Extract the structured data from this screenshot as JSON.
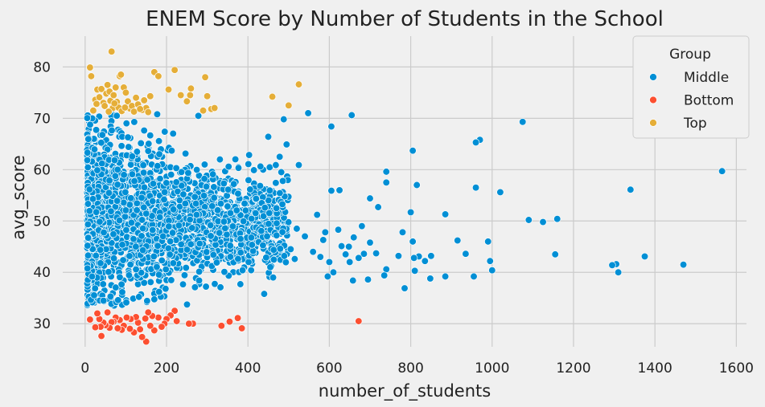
{
  "chart_data": {
    "type": "scatter",
    "title": "ENEM Score by Number of Students in the School",
    "xlabel": "number_of_students",
    "ylabel": "avg_score",
    "xlim": [
      -55,
      1625
    ],
    "ylim": [
      25.5,
      86
    ],
    "xticks": [
      0,
      200,
      400,
      600,
      800,
      1000,
      1200,
      1400,
      1600
    ],
    "xtick_labels": [
      "0",
      "200",
      "400",
      "600",
      "800",
      "1000",
      "1200",
      "1400",
      "1600"
    ],
    "yticks": [
      30,
      40,
      50,
      60,
      70,
      80
    ],
    "ytick_labels": [
      "30",
      "40",
      "50",
      "60",
      "70",
      "80"
    ],
    "grid": true,
    "legend": {
      "title": "Group",
      "placement": "top-right",
      "entries": [
        "Middle",
        "Bottom",
        "Top"
      ]
    },
    "colors": {
      "Middle": "#008fd5",
      "Bottom": "#fc4f30",
      "Top": "#e5ae38",
      "background": "#f0f0f0",
      "grid": "#cbcbcb"
    },
    "series": [
      {
        "name": "Middle",
        "dense_region": {
          "x": [
            5,
            500
          ],
          "y": [
            33.5,
            71
          ],
          "approx_count": 2400
        },
        "points": [
          [
            1565,
            59.7
          ],
          [
            1470,
            41.5
          ],
          [
            1375,
            43.1
          ],
          [
            1340,
            56.1
          ],
          [
            1310,
            40.0
          ],
          [
            1305,
            41.6
          ],
          [
            1295,
            41.4
          ],
          [
            1160,
            50.4
          ],
          [
            1155,
            43.5
          ],
          [
            1125,
            49.8
          ],
          [
            1090,
            50.2
          ],
          [
            1075,
            69.3
          ],
          [
            1020,
            55.6
          ],
          [
            1000,
            40.4
          ],
          [
            995,
            42.2
          ],
          [
            990,
            46.0
          ],
          [
            970,
            65.8
          ],
          [
            960,
            65.3
          ],
          [
            960,
            56.5
          ],
          [
            955,
            39.2
          ],
          [
            935,
            43.6
          ],
          [
            915,
            46.2
          ],
          [
            885,
            51.3
          ],
          [
            885,
            39.2
          ],
          [
            850,
            43.2
          ],
          [
            848,
            38.8
          ],
          [
            835,
            42.2
          ],
          [
            820,
            43.1
          ],
          [
            815,
            57.0
          ],
          [
            810,
            40.3
          ],
          [
            808,
            42.8
          ],
          [
            805,
            63.7
          ],
          [
            805,
            46.0
          ],
          [
            800,
            51.7
          ],
          [
            785,
            36.9
          ],
          [
            780,
            47.8
          ],
          [
            770,
            43.2
          ],
          [
            740,
            59.6
          ],
          [
            740,
            57.5
          ],
          [
            740,
            40.6
          ],
          [
            735,
            39.4
          ],
          [
            720,
            52.7
          ],
          [
            715,
            43.7
          ],
          [
            700,
            54.4
          ],
          [
            700,
            45.8
          ],
          [
            695,
            38.6
          ],
          [
            685,
            43.6
          ],
          [
            680,
            49.0
          ],
          [
            672,
            42.8
          ],
          [
            660,
            46.8
          ],
          [
            658,
            38.4
          ],
          [
            655,
            70.6
          ],
          [
            650,
            42.0
          ],
          [
            648,
            45.0
          ],
          [
            640,
            43.5
          ],
          [
            630,
            45.1
          ],
          [
            625,
            56.0
          ],
          [
            622,
            48.3
          ],
          [
            610,
            40.0
          ],
          [
            605,
            68.4
          ],
          [
            605,
            55.9
          ],
          [
            600,
            42.0
          ],
          [
            596,
            39.2
          ],
          [
            590,
            47.8
          ],
          [
            585,
            46.3
          ],
          [
            578,
            43.0
          ],
          [
            570,
            51.2
          ],
          [
            560,
            44.0
          ],
          [
            548,
            71.0
          ],
          [
            540,
            47.0
          ],
          [
            525,
            60.9
          ],
          [
            520,
            48.5
          ],
          [
            515,
            42.6
          ],
          [
            505,
            44.5
          ],
          [
            495,
            64.9
          ],
          [
            488,
            69.8
          ],
          [
            482,
            59.5
          ],
          [
            478,
            62.5
          ],
          [
            470,
            52.5
          ],
          [
            462,
            39.0
          ],
          [
            455,
            41.0
          ],
          [
            450,
            66.4
          ],
          [
            440,
            35.8
          ]
        ]
      },
      {
        "name": "Bottom",
        "points": [
          [
            672,
            30.5
          ],
          [
            385,
            29.1
          ],
          [
            375,
            31.1
          ],
          [
            355,
            30.4
          ],
          [
            335,
            29.6
          ],
          [
            265,
            30.0
          ],
          [
            255,
            30.0
          ],
          [
            225,
            30.5
          ],
          [
            220,
            32.5
          ],
          [
            210,
            31.6
          ],
          [
            200,
            30.9
          ],
          [
            195,
            30.0
          ],
          [
            188,
            29.4
          ],
          [
            180,
            31.2
          ],
          [
            170,
            28.7
          ],
          [
            165,
            31.5
          ],
          [
            160,
            29.6
          ],
          [
            155,
            32.2
          ],
          [
            150,
            26.5
          ],
          [
            148,
            31.0
          ],
          [
            140,
            27.4
          ],
          [
            135,
            28.9
          ],
          [
            130,
            30.2
          ],
          [
            125,
            31.3
          ],
          [
            120,
            28.3
          ],
          [
            112,
            30.9
          ],
          [
            110,
            29.0
          ],
          [
            102,
            31.2
          ],
          [
            95,
            29.6
          ],
          [
            90,
            28.8
          ],
          [
            85,
            30.7
          ],
          [
            80,
            29.1
          ],
          [
            75,
            31.2
          ],
          [
            70,
            30.4
          ],
          [
            65,
            30.3
          ],
          [
            60,
            29.2
          ],
          [
            55,
            32.2
          ],
          [
            50,
            29.7
          ],
          [
            45,
            30.2
          ],
          [
            40,
            27.6
          ],
          [
            38,
            29.4
          ],
          [
            35,
            30.9
          ],
          [
            30,
            32.0
          ],
          [
            25,
            29.3
          ],
          [
            12,
            30.8
          ]
        ]
      },
      {
        "name": "Top",
        "points": [
          [
            65,
            83.0
          ],
          [
            12,
            79.9
          ],
          [
            15,
            78.2
          ],
          [
            85,
            78.2
          ],
          [
            88,
            78.5
          ],
          [
            170,
            79.0
          ],
          [
            180,
            78.2
          ],
          [
            220,
            79.4
          ],
          [
            295,
            78.0
          ],
          [
            205,
            75.6
          ],
          [
            260,
            75.8
          ],
          [
            258,
            74.5
          ],
          [
            235,
            74.5
          ],
          [
            300,
            74.3
          ],
          [
            250,
            73.3
          ],
          [
            310,
            71.8
          ],
          [
            318,
            72.0
          ],
          [
            290,
            71.5
          ],
          [
            460,
            74.2
          ],
          [
            500,
            72.5
          ],
          [
            525,
            76.6
          ],
          [
            30,
            75.6
          ],
          [
            40,
            75.7
          ],
          [
            55,
            76.5
          ],
          [
            75,
            76.0
          ],
          [
            95,
            76.0
          ],
          [
            100,
            75.0
          ],
          [
            25,
            73.6
          ],
          [
            35,
            74.1
          ],
          [
            45,
            73.0
          ],
          [
            48,
            72.4
          ],
          [
            52,
            74.8
          ],
          [
            60,
            75.2
          ],
          [
            62,
            73.4
          ],
          [
            68,
            72.0
          ],
          [
            70,
            74.5
          ],
          [
            78,
            73.2
          ],
          [
            82,
            72.1
          ],
          [
            90,
            71.4
          ],
          [
            105,
            73.3
          ],
          [
            110,
            71.9
          ],
          [
            115,
            72.4
          ],
          [
            120,
            71.3
          ],
          [
            125,
            74.0
          ],
          [
            130,
            72.7
          ],
          [
            140,
            71.6
          ],
          [
            145,
            73.5
          ],
          [
            150,
            72.0
          ],
          [
            155,
            71.2
          ],
          [
            160,
            74.3
          ],
          [
            20,
            71.5
          ],
          [
            28,
            72.8
          ],
          [
            58,
            71.3
          ],
          [
            72,
            72.9
          ],
          [
            98,
            72.1
          ],
          [
            135,
            71.8
          ]
        ]
      }
    ]
  }
}
